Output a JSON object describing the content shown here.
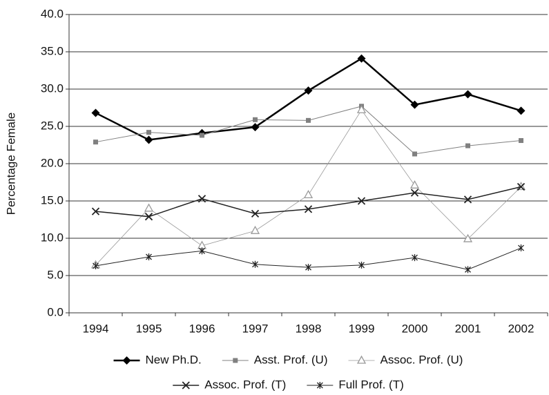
{
  "chart_data": {
    "type": "line",
    "y_label": "Percentage Female",
    "categories": [
      "1994",
      "1995",
      "1996",
      "1997",
      "1998",
      "1999",
      "2000",
      "2001",
      "2002"
    ],
    "series": [
      {
        "name": "New Ph.D.",
        "color": "#000000",
        "marker": "diamond",
        "line_width": 2.5,
        "values": [
          26.8,
          23.2,
          24.1,
          24.9,
          29.8,
          34.1,
          27.9,
          29.3,
          27.1
        ]
      },
      {
        "name": "Asst. Prof. (U)",
        "color": "#808080",
        "marker": "square",
        "line_width": 1,
        "values": [
          22.9,
          24.2,
          23.8,
          25.9,
          25.8,
          27.7,
          21.3,
          22.4,
          23.1
        ]
      },
      {
        "name": "Assoc. Prof. (U)",
        "color": "#999999",
        "marker": "triangle",
        "line_width": 0.8,
        "values": [
          6.4,
          14.0,
          9.0,
          11.0,
          15.8,
          27.2,
          17.1,
          9.9,
          16.9
        ]
      },
      {
        "name": "Assoc.  Prof. (T)",
        "color": "#222222",
        "marker": "cross",
        "line_width": 1.5,
        "values": [
          13.6,
          12.9,
          15.3,
          13.3,
          13.9,
          15.0,
          16.1,
          15.2,
          16.9
        ]
      },
      {
        "name": "Full Prof. (T)",
        "color": "#222222",
        "marker": "asterisk",
        "line_width": 1,
        "values": [
          6.3,
          7.5,
          8.3,
          6.5,
          6.1,
          6.4,
          7.4,
          5.8,
          8.7
        ]
      }
    ],
    "ylim": [
      0,
      40
    ],
    "yticks": [
      {
        "value": 0,
        "label": "0.0"
      },
      {
        "value": 5,
        "label": "5.0"
      },
      {
        "value": 10,
        "label": "10.0"
      },
      {
        "value": 15,
        "label": "15.0"
      },
      {
        "value": 20,
        "label": "20.0"
      },
      {
        "value": 25,
        "label": "25.0"
      },
      {
        "value": 30,
        "label": "30.0"
      },
      {
        "value": 35,
        "label": "35.0"
      },
      {
        "value": 40,
        "label": "40.0"
      }
    ],
    "grid": true,
    "legend": "bottom"
  }
}
